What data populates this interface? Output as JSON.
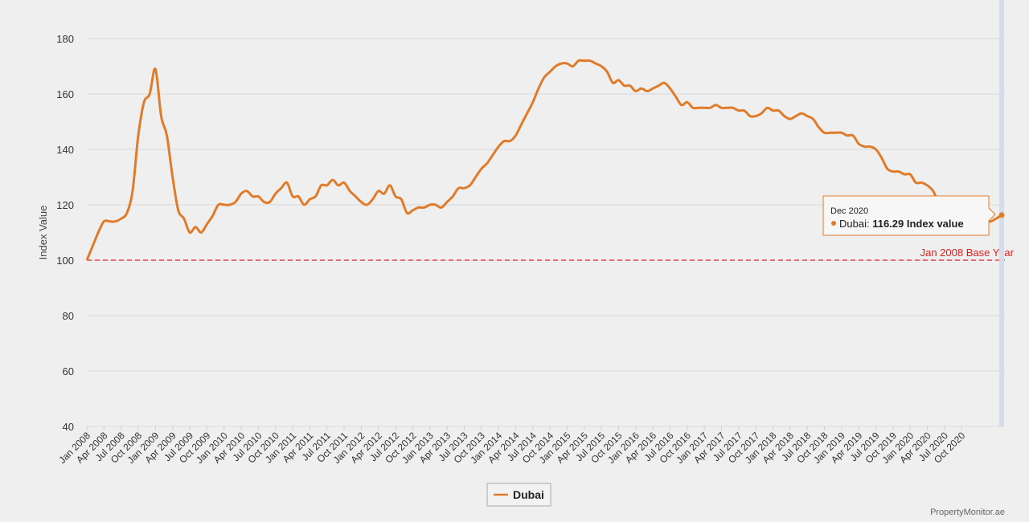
{
  "chart_data": {
    "type": "line",
    "ylabel": "Index Value",
    "ylim": [
      40,
      180
    ],
    "yticks": [
      40,
      60,
      80,
      100,
      120,
      140,
      160,
      180
    ],
    "grid": true,
    "legend_position": "bottom-center",
    "xtick_labels": [
      "Jan 2008",
      "Apr 2008",
      "Jul 2008",
      "Oct 2008",
      "Jan 2009",
      "Apr 2009",
      "Jul 2009",
      "Oct 2009",
      "Jan 2010",
      "Apr 2010",
      "Jul 2010",
      "Oct 2010",
      "Jan 2011",
      "Apr 2011",
      "Jul 2011",
      "Oct 2011",
      "Jan 2012",
      "Apr 2012",
      "Jul 2012",
      "Oct 2012",
      "Jan 2013",
      "Apr 2013",
      "Jul 2013",
      "Oct 2013",
      "Jan 2014",
      "Apr 2014",
      "Jul 2014",
      "Oct 2014",
      "Jan 2015",
      "Apr 2015",
      "Jul 2015",
      "Oct 2015",
      "Jan 2016",
      "Apr 2016",
      "Jul 2016",
      "Oct 2016",
      "Jan 2017",
      "Apr 2017",
      "Jul 2017",
      "Oct 2017",
      "Jan 2018",
      "Apr 2018",
      "Jul 2018",
      "Oct 2018",
      "Jan 2019",
      "Apr 2019",
      "Jul 2019",
      "Oct 2019",
      "Jan 2020",
      "Apr 2020",
      "Jul 2020",
      "Oct 2020"
    ],
    "series": [
      {
        "name": "Dubai",
        "color": "#e07b2a",
        "x_start": "Jan 2008",
        "x_end": "Dec 2020",
        "values": [
          100,
          105,
          110,
          114,
          114,
          114,
          115,
          117,
          125,
          145,
          157,
          160,
          169,
          152,
          145,
          130,
          118,
          115,
          110,
          112,
          110,
          113,
          116,
          120,
          120,
          120,
          121,
          124,
          125,
          123,
          123,
          121,
          121,
          124,
          126,
          128,
          123,
          123,
          120,
          122,
          123,
          127,
          127,
          129,
          127,
          128,
          125,
          123,
          121,
          120,
          122,
          125,
          124,
          127,
          123,
          122,
          117,
          118,
          119,
          119,
          120,
          120,
          119,
          121,
          123,
          126,
          126,
          127,
          130,
          133,
          135,
          138,
          141,
          143,
          143,
          145,
          149,
          153,
          157,
          162,
          166,
          168,
          170,
          171,
          171,
          170,
          172,
          172,
          172,
          171,
          170,
          168,
          164,
          165,
          163,
          163,
          161,
          162,
          161,
          162,
          163,
          164,
          162,
          159,
          156,
          157,
          155,
          155,
          155,
          155,
          156,
          155,
          155,
          155,
          154,
          154,
          152,
          152,
          153,
          155,
          154,
          154,
          152,
          151,
          152,
          153,
          152,
          151,
          148,
          146,
          146,
          146,
          146,
          145,
          145,
          142,
          141,
          141,
          140,
          137,
          133,
          132,
          132,
          131,
          131,
          128,
          128,
          127,
          125,
          121,
          121,
          121,
          120,
          121,
          118,
          116,
          114,
          115,
          114,
          115,
          116.29
        ]
      }
    ],
    "baseline": {
      "value": 100,
      "label": "Jan 2008 Base Year",
      "color": "#e02020"
    },
    "tooltip": {
      "date": "Dec 2020",
      "series": "Dubai",
      "value": "116.29",
      "unit": "Index value"
    }
  },
  "credit": "PropertyMonitor.ae"
}
